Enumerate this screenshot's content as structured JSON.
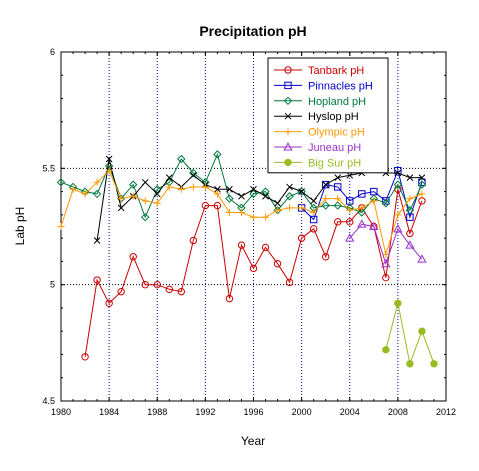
{
  "chart_data": {
    "type": "line",
    "title": "Precipitation pH",
    "xlabel": "Year",
    "ylabel": "Lab pH",
    "xlim": [
      1980,
      2012
    ],
    "ylim": [
      4.5,
      6
    ],
    "xticks": [
      "1980",
      "1984",
      "1988",
      "1992",
      "1996",
      "2000",
      "2004",
      "2008",
      "2012"
    ],
    "yticks": [
      "4.5",
      "5",
      "5.5",
      "6"
    ],
    "grid": "dotted at x=1984,1988,1992,1996,2000,2004,2008 and y=5,5.5",
    "legend_position": "top-right",
    "series": [
      {
        "name": "Tanbark pH",
        "color": "#cc0000",
        "marker": "circle-open",
        "x": [
          1982,
          1983,
          1984,
          1985,
          1986,
          1987,
          1988,
          1989,
          1990,
          1991,
          1992,
          1993,
          1994,
          1995,
          1996,
          1997,
          1998,
          1999,
          2000,
          2001,
          2002,
          2003,
          2004,
          2005,
          2006,
          2007,
          2008,
          2009,
          2010
        ],
        "y": [
          4.69,
          5.02,
          4.92,
          4.97,
          5.12,
          5.0,
          5.0,
          4.98,
          4.97,
          5.19,
          5.34,
          5.34,
          4.94,
          5.17,
          5.07,
          5.16,
          5.09,
          5.01,
          5.2,
          5.24,
          5.12,
          5.27,
          5.27,
          5.33,
          5.25,
          5.03,
          5.41,
          5.22,
          5.36
        ]
      },
      {
        "name": "Pinnacles pH",
        "color": "#0000cc",
        "marker": "square-open",
        "x": [
          2000,
          2001,
          2002,
          2003,
          2004,
          2005,
          2006,
          2007,
          2008,
          2009,
          2010
        ],
        "y": [
          5.33,
          5.28,
          5.43,
          5.42,
          5.36,
          5.39,
          5.4,
          5.36,
          5.49,
          5.29,
          5.44
        ]
      },
      {
        "name": "Hopland pH",
        "color": "#007a3d",
        "marker": "diamond-open",
        "x": [
          1980,
          1981,
          1982,
          1983,
          1984,
          1985,
          1986,
          1987,
          1988,
          1989,
          1990,
          1991,
          1992,
          1993,
          1994,
          1995,
          1996,
          1997,
          1998,
          1999,
          2000,
          2001,
          2002,
          2003,
          2004,
          2005,
          2006,
          2007,
          2008,
          2009,
          2010
        ],
        "y": [
          5.44,
          5.42,
          5.4,
          5.39,
          5.51,
          5.37,
          5.43,
          5.29,
          5.41,
          5.44,
          5.54,
          5.48,
          5.44,
          5.56,
          5.37,
          5.33,
          5.39,
          5.4,
          5.32,
          5.38,
          5.4,
          5.33,
          5.34,
          5.34,
          5.33,
          5.31,
          5.37,
          5.35,
          5.43,
          5.32,
          5.43
        ]
      },
      {
        "name": "Hyslop pH",
        "color": "#000000",
        "marker": "x",
        "x": [
          1983,
          1984,
          1985,
          1986,
          1987,
          1988,
          1989,
          1990,
          1991,
          1992,
          1993,
          1994,
          1995,
          1996,
          1997,
          1998,
          1999,
          2000,
          2001,
          2002,
          2003,
          2004,
          2005,
          2006,
          2007,
          2008,
          2009,
          2010
        ],
        "y": [
          5.19,
          5.54,
          5.33,
          5.38,
          5.44,
          5.39,
          5.46,
          5.42,
          5.47,
          5.43,
          5.41,
          5.41,
          5.38,
          5.41,
          5.38,
          5.35,
          5.42,
          5.4,
          5.36,
          5.43,
          5.46,
          5.47,
          5.48,
          5.5,
          5.48,
          5.48,
          5.46,
          5.46
        ]
      },
      {
        "name": "Olympic pH",
        "color": "#ff9900",
        "marker": "plus",
        "x": [
          1980,
          1981,
          1982,
          1983,
          1984,
          1985,
          1986,
          1987,
          1988,
          1989,
          1990,
          1991,
          1992,
          1993,
          1994,
          1995,
          1996,
          1997,
          1998,
          1999,
          2000,
          2001,
          2002,
          2003,
          2004,
          2005,
          2006,
          2007,
          2008,
          2009,
          2010
        ],
        "y": [
          5.25,
          5.41,
          5.39,
          5.44,
          5.49,
          5.37,
          5.38,
          5.36,
          5.35,
          5.42,
          5.41,
          5.42,
          5.42,
          5.39,
          5.31,
          5.31,
          5.29,
          5.29,
          5.32,
          5.33,
          5.33,
          5.31,
          5.37,
          5.37,
          5.32,
          5.33,
          5.36,
          5.13,
          5.3,
          5.37,
          5.39
        ]
      },
      {
        "name": "Juneau pH",
        "color": "#9933cc",
        "marker": "triangle-open",
        "x": [
          2004,
          2005,
          2006,
          2007,
          2008,
          2009,
          2010
        ],
        "y": [
          5.2,
          5.26,
          5.25,
          5.09,
          5.24,
          5.17,
          5.11
        ]
      },
      {
        "name": "Big Sur pH",
        "color": "#99bb22",
        "marker": "circle-filled",
        "x": [
          2007,
          2008,
          2009,
          2010,
          2011
        ],
        "y": [
          4.72,
          4.92,
          4.66,
          4.8,
          4.66
        ]
      }
    ]
  }
}
